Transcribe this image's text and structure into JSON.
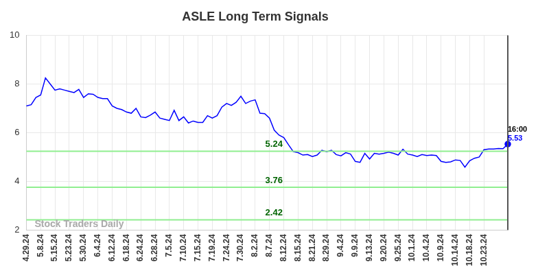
{
  "chart_data": {
    "type": "line",
    "title": "ASLE Long Term Signals",
    "categories": [
      "4.29.24",
      null,
      null,
      "5.8.24",
      null,
      null,
      "5.15.24",
      null,
      null,
      "5.23.24",
      null,
      null,
      "5.30.24",
      null,
      null,
      "6.4.24",
      null,
      null,
      "6.12.24",
      null,
      null,
      "6.18.24",
      null,
      null,
      "6.24.24",
      null,
      null,
      "6.28.24",
      null,
      null,
      "7.5.24",
      null,
      null,
      "7.10.24",
      null,
      null,
      "7.15.24",
      null,
      null,
      "7.19.24",
      null,
      null,
      "7.24.24",
      null,
      null,
      "7.30.24",
      null,
      null,
      "8.2.24",
      null,
      null,
      "8.7.24",
      null,
      null,
      "8.12.24",
      null,
      null,
      "8.15.24",
      null,
      null,
      "8.21.24",
      null,
      null,
      "8.29.24",
      null,
      null,
      "9.4.24",
      null,
      null,
      "9.9.24",
      null,
      null,
      "9.13.24",
      null,
      null,
      "9.20.24",
      null,
      null,
      "9.25.24",
      null,
      null,
      "10.1.24",
      null,
      null,
      "10.4.24",
      null,
      null,
      "10.9.24",
      null,
      null,
      "10.14.24",
      null,
      null,
      "10.18.24",
      null,
      null,
      "10.23.24",
      null,
      null,
      null,
      null,
      null
    ],
    "values": [
      7.1,
      7.15,
      7.45,
      7.55,
      8.25,
      8.0,
      7.75,
      7.8,
      7.75,
      7.7,
      7.65,
      7.78,
      7.45,
      7.6,
      7.58,
      7.45,
      7.4,
      7.4,
      7.1,
      7.0,
      6.95,
      6.85,
      6.8,
      7.0,
      6.65,
      6.62,
      6.72,
      6.85,
      6.6,
      6.55,
      6.5,
      6.92,
      6.5,
      6.65,
      6.4,
      6.48,
      6.42,
      6.42,
      6.7,
      6.6,
      6.7,
      7.05,
      7.2,
      7.12,
      7.25,
      7.5,
      7.2,
      7.3,
      7.35,
      6.8,
      6.78,
      6.6,
      6.1,
      5.9,
      5.8,
      5.5,
      5.22,
      5.18,
      5.08,
      5.1,
      5.02,
      5.08,
      5.28,
      5.22,
      5.28,
      5.1,
      5.05,
      5.18,
      5.12,
      4.82,
      4.78,
      5.15,
      4.92,
      5.15,
      5.12,
      5.15,
      5.2,
      5.15,
      5.08,
      5.32,
      5.12,
      5.08,
      5.02,
      5.1,
      5.06,
      5.08,
      5.06,
      4.82,
      4.78,
      4.8,
      4.88,
      4.86,
      4.58,
      4.85,
      4.95,
      5.0,
      5.3,
      5.33,
      5.33,
      5.35,
      5.34,
      5.53
    ],
    "color": "#0000ff",
    "ylim": [
      2,
      10
    ],
    "yticks": [
      2,
      4,
      6,
      8,
      10
    ],
    "grid": true,
    "reference_lines": [
      5.24,
      3.76,
      2.42
    ],
    "end_label": {
      "text": "16:00",
      "value": 5.53
    },
    "watermark": "Stock Traders Daily"
  }
}
